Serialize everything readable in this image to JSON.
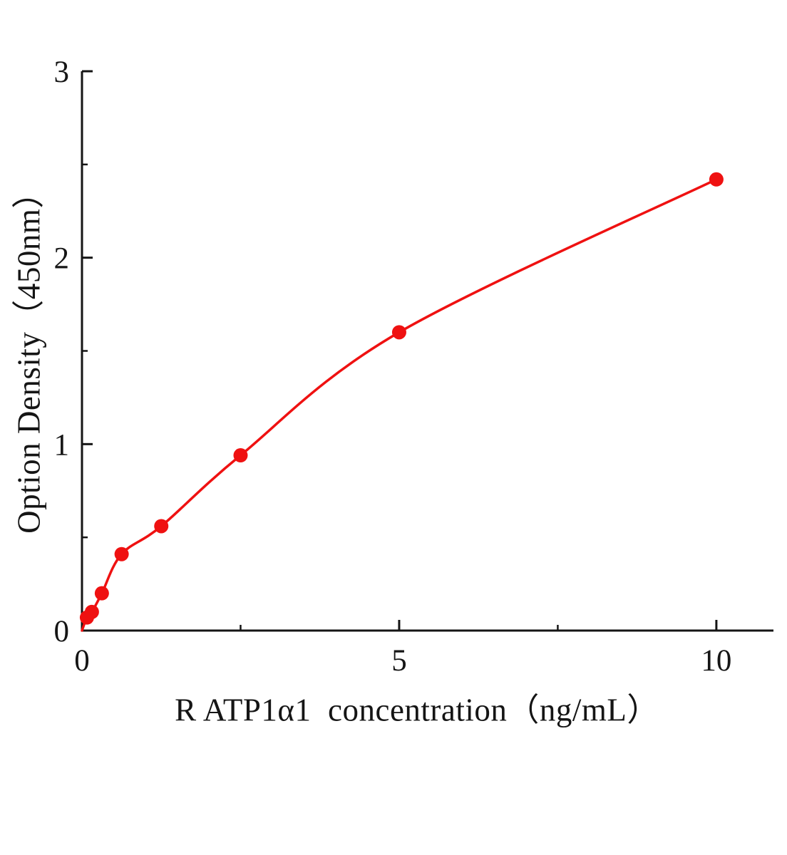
{
  "chart_data": {
    "type": "scatter",
    "title": "",
    "xlabel": "R ATP1α1  concentration（ng/mL）",
    "ylabel": "Option Density（450nm）",
    "x": [
      0.078,
      0.156,
      0.313,
      0.625,
      1.25,
      2.5,
      5,
      10
    ],
    "y": [
      0.07,
      0.1,
      0.2,
      0.41,
      0.56,
      0.94,
      1.6,
      2.42
    ],
    "curve_start": [
      0,
      0
    ],
    "x_axis": {
      "min": 0,
      "max": 10,
      "extent": 10.9,
      "major_ticks": [
        0,
        5,
        10
      ],
      "minor_ticks": [
        2.5,
        7.5
      ],
      "tick_labels": [
        "0",
        "5",
        "10"
      ]
    },
    "y_axis": {
      "min": 0,
      "max": 3,
      "major_ticks": [
        0,
        1,
        2,
        3
      ],
      "minor_ticks": [
        0.5,
        1.5,
        2.5
      ],
      "tick_labels": [
        "0",
        "1",
        "2",
        "3"
      ]
    },
    "series_color": "#ef1111",
    "axis_color": "#151515",
    "marker_radius": 10,
    "grid": false,
    "legend": null
  }
}
